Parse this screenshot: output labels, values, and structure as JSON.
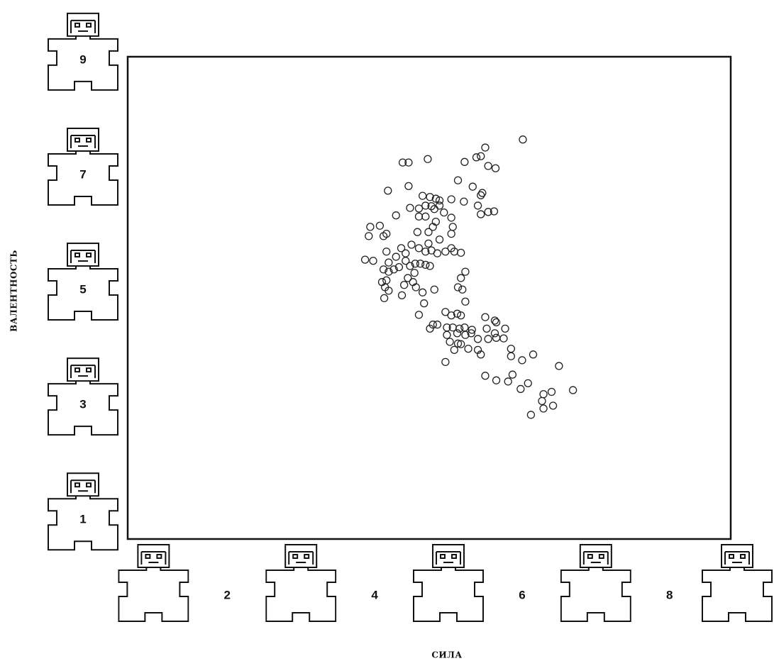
{
  "chart_data": {
    "type": "scatter",
    "x_label": "СИЛА",
    "y_label": "ВАЛЕНТНОСТЬ",
    "xlim": [
      0.65,
      8.83
    ],
    "ylim": [
      0.67,
      9.06
    ],
    "xticks": [
      2,
      4,
      6,
      8
    ],
    "yticks": [
      1,
      3,
      5,
      7,
      9
    ],
    "color": "#222222",
    "x": [
      6.01,
      5.5,
      4.72,
      4.38,
      4.46,
      5.22,
      5.38,
      5.44,
      5.54,
      5.64,
      4.18,
      4.46,
      5.13,
      5.33,
      5.46,
      5.44,
      4.65,
      4.75,
      4.83,
      4.88,
      5.04,
      5.21,
      4.48,
      4.6,
      4.69,
      4.77,
      4.81,
      4.88,
      4.6,
      4.69,
      4.94,
      5.04,
      5.4,
      5.44,
      5.54,
      5.62,
      4.29,
      3.94,
      4.07,
      4.16,
      4.12,
      3.92,
      4.58,
      4.73,
      4.79,
      4.83,
      5.06,
      5.04,
      4.73,
      4.88,
      4.36,
      4.42,
      4.5,
      4.6,
      4.69,
      4.77,
      4.85,
      4.96,
      5.04,
      5.08,
      5.17,
      3.87,
      3.98,
      4.16,
      4.19,
      4.29,
      4.33,
      4.42,
      4.48,
      4.55,
      4.62,
      4.69,
      4.75,
      4.12,
      4.19,
      4.26,
      4.54,
      4.45,
      4.52,
      4.4,
      4.56,
      4.65,
      4.81,
      4.16,
      4.1,
      4.14,
      4.19,
      4.13,
      4.37,
      4.67,
      5.23,
      5.17,
      5.13,
      5.19,
      5.23,
      4.6,
      4.96,
      5.04,
      5.12,
      5.17,
      5.5,
      5.63,
      5.65,
      4.79,
      4.75,
      4.85,
      4.98,
      5.06,
      5.15,
      5.22,
      5.32,
      5.52,
      5.63,
      5.77,
      4.98,
      5.12,
      5.23,
      5.31,
      5.4,
      5.54,
      5.65,
      5.75,
      5.02,
      5.13,
      5.17,
      5.08,
      5.27,
      5.4,
      5.44,
      5.85,
      5.85,
      6.0,
      6.15,
      4.96,
      6.5,
      5.5,
      5.65,
      5.81,
      5.87,
      5.98,
      6.08,
      6.29,
      6.4,
      6.69,
      6.27,
      6.29,
      6.42,
      6.12
    ],
    "values": [
      7.62,
      7.48,
      7.28,
      7.22,
      7.22,
      7.23,
      7.31,
      7.33,
      7.16,
      7.12,
      6.73,
      6.81,
      6.91,
      6.8,
      6.69,
      6.65,
      6.64,
      6.62,
      6.59,
      6.56,
      6.58,
      6.54,
      6.43,
      6.42,
      6.47,
      6.46,
      6.41,
      6.47,
      6.28,
      6.28,
      6.35,
      6.26,
      6.47,
      6.32,
      6.36,
      6.37,
      6.3,
      6.1,
      6.12,
      5.98,
      5.94,
      5.94,
      6.01,
      6.01,
      6.1,
      6.19,
      6.1,
      5.98,
      5.81,
      5.88,
      5.73,
      5.64,
      5.79,
      5.73,
      5.67,
      5.69,
      5.64,
      5.67,
      5.73,
      5.67,
      5.65,
      5.53,
      5.51,
      5.67,
      5.48,
      5.58,
      5.4,
      5.51,
      5.42,
      5.46,
      5.46,
      5.44,
      5.42,
      5.36,
      5.32,
      5.36,
      5.3,
      5.21,
      5.14,
      5.09,
      5.05,
      4.96,
      5.01,
      5.17,
      5.14,
      5.05,
      4.99,
      4.86,
      4.91,
      4.77,
      5.32,
      5.21,
      5.05,
      5.01,
      4.8,
      4.57,
      4.62,
      4.56,
      4.59,
      4.56,
      4.53,
      4.47,
      4.44,
      4.4,
      4.33,
      4.4,
      4.35,
      4.35,
      4.33,
      4.35,
      4.31,
      4.33,
      4.25,
      4.33,
      4.22,
      4.25,
      4.22,
      4.25,
      4.15,
      4.15,
      4.17,
      4.16,
      4.1,
      4.07,
      4.06,
      3.96,
      3.98,
      3.96,
      3.88,
      3.98,
      3.85,
      3.78,
      3.88,
      3.75,
      3.68,
      3.51,
      3.43,
      3.41,
      3.53,
      3.28,
      3.38,
      3.19,
      3.23,
      3.26,
      3.07,
      2.94,
      2.99,
      2.83
    ]
  }
}
